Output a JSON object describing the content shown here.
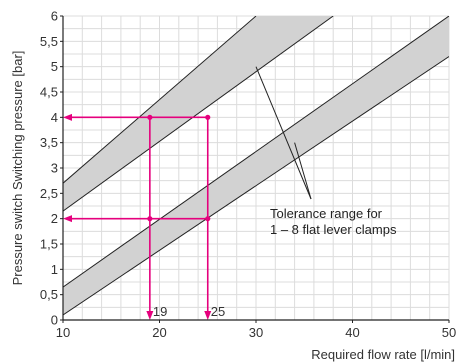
{
  "chart_data": {
    "type": "line",
    "xlabel": "Required flow rate [l/min]",
    "ylabel": "Pressure switch Switching pressure [bar]",
    "xlim": [
      10,
      50
    ],
    "ylim": [
      0,
      6
    ],
    "x_ticks": [
      "10",
      "20",
      "30",
      "40",
      "50"
    ],
    "y_ticks": [
      "0",
      "0,5",
      "1",
      "1,5",
      "2",
      "2,5",
      "3",
      "3,5",
      "4",
      "4,5",
      "5",
      "5,5",
      "6"
    ],
    "grid": true,
    "bands": [
      {
        "lower": {
          "x": [
            10,
            38
          ],
          "y": [
            2.15,
            6
          ]
        },
        "upper": {
          "x": [
            10,
            30
          ],
          "y": [
            2.7,
            6
          ]
        }
      },
      {
        "lower": {
          "x": [
            10,
            50
          ],
          "y": [
            0.1,
            5.2
          ]
        },
        "upper": {
          "x": [
            10,
            50
          ],
          "y": [
            0.65,
            6.0
          ]
        }
      }
    ],
    "examples": [
      {
        "pressure": 4,
        "flow_low": 19,
        "flow_high": 25
      },
      {
        "pressure": 2,
        "flow_low": 19,
        "flow_high": 25
      }
    ],
    "flow_markers": [
      {
        "x": 19,
        "label": "19"
      },
      {
        "x": 25,
        "label": "25"
      }
    ],
    "annotation": {
      "lines": [
        "Tolerance range for",
        "1 – 8 flat lever clamps"
      ],
      "pointer_targets": [
        [
          30,
          5.0
        ],
        [
          34,
          3.5
        ]
      ]
    },
    "colors": {
      "band_fill": "#d2d2d2",
      "band_line": "#222222",
      "guide": "#e5007d",
      "grid": "#dcdcdc",
      "axis": "#222222"
    }
  }
}
